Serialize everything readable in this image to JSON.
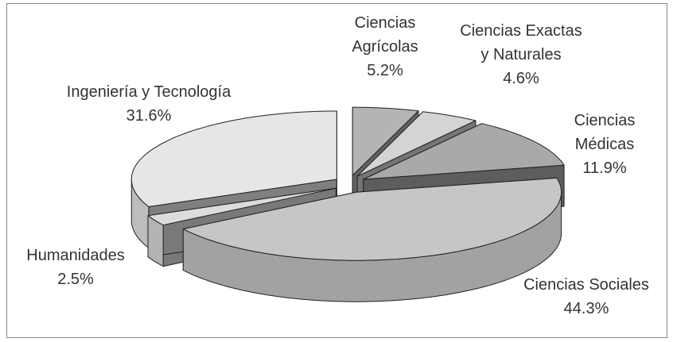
{
  "chart_data": {
    "type": "pie3d",
    "categories": [
      "Ciencias Agrícolas",
      "Ciencias Exactas y Naturales",
      "Ciencias Médicas",
      "Ciencias Sociales",
      "Humanidades",
      "Ingeniería y Tecnología"
    ],
    "values": [
      5.2,
      4.6,
      11.9,
      44.3,
      2.5,
      31.6
    ],
    "value_labels": [
      "5.2%",
      "4.6%",
      "11.9%",
      "44.3%",
      "2.5%",
      "31.6%"
    ],
    "colors": [
      "#b4b4b4",
      "#d4d4d4",
      "#a9a9a9",
      "#c6c6c6",
      "#dcdcdc",
      "#e6e6e6"
    ]
  }
}
